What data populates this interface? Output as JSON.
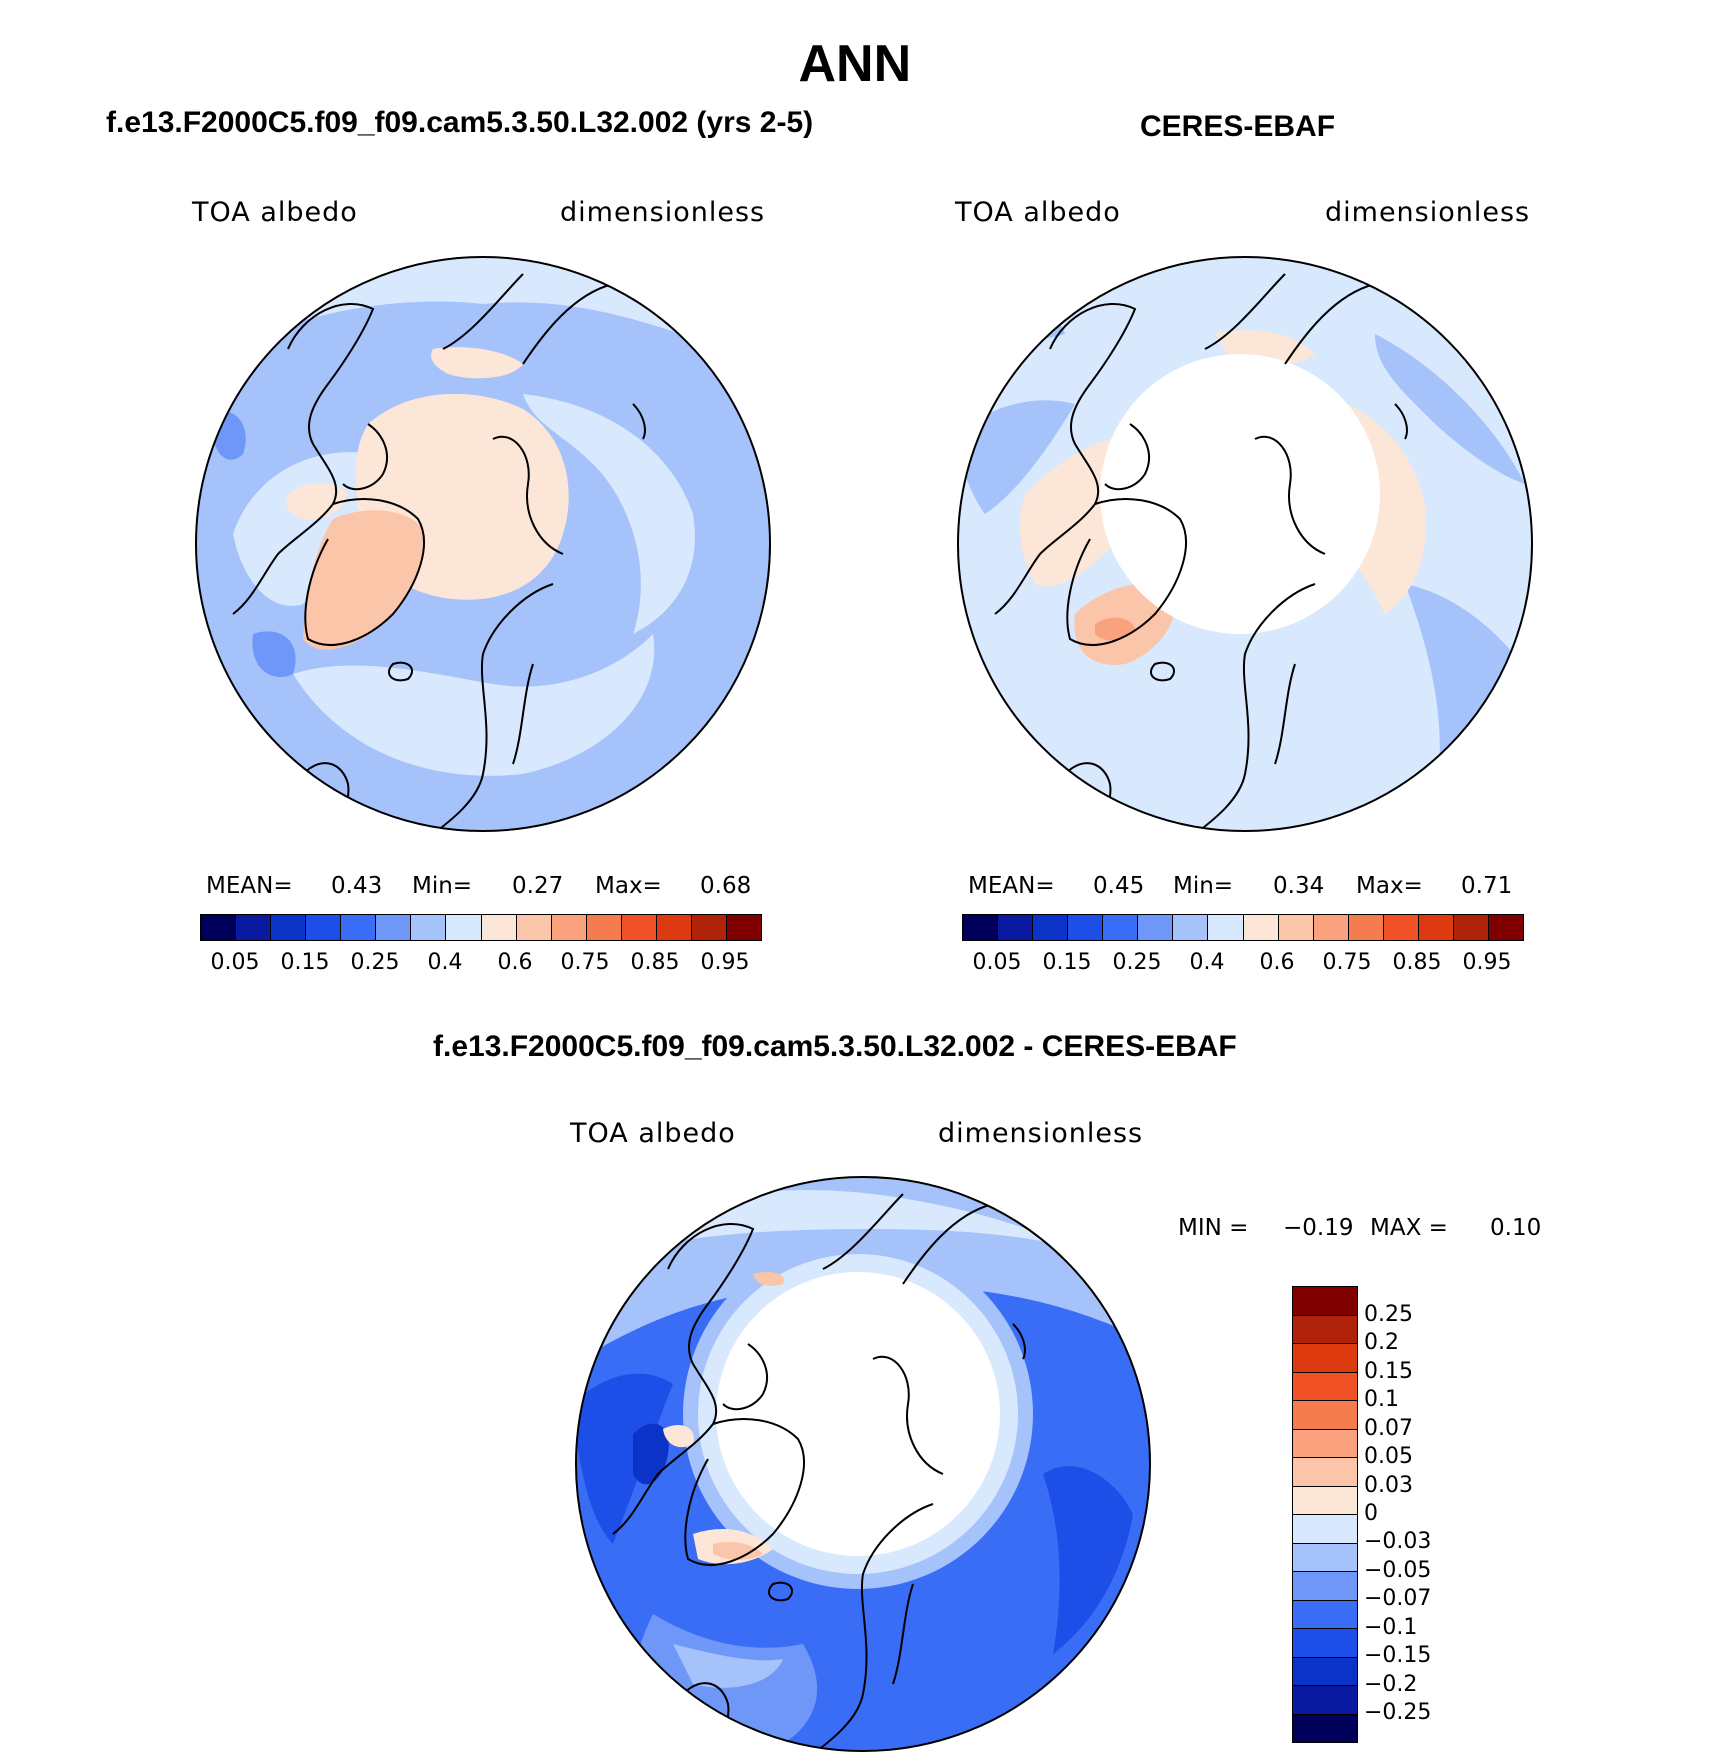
{
  "figure": {
    "title": "ANN"
  },
  "colors": {
    "albedo_scale": [
      "#00005a",
      "#0a1aa0",
      "#0b33c8",
      "#1d4fe8",
      "#3a6df5",
      "#6f97f7",
      "#a5c2fb",
      "#d8e8fd",
      "#fce6d8",
      "#fbc5aa",
      "#f9a27d",
      "#f47c4e",
      "#f05226",
      "#dd3a10",
      "#b0230a",
      "#800000"
    ],
    "diff_scale": [
      "#800000",
      "#b0230a",
      "#dd3a10",
      "#f05226",
      "#f47c4e",
      "#f9a27d",
      "#fbc5aa",
      "#fce6d8",
      "#d8e8fd",
      "#a5c2fb",
      "#6f97f7",
      "#3a6df5",
      "#1d4fe8",
      "#0b33c8",
      "#0a1aa0",
      "#00005a"
    ],
    "coastline": "#000000",
    "frame": "#000000"
  },
  "panels": {
    "model": {
      "title": "f.e13.F2000C5.f09_f09.cam5.3.50.L32.002 (yrs 2-5)",
      "left_label": "TOA albedo",
      "right_label": "dimensionless",
      "stats": {
        "mean_label": "MEAN=",
        "mean": "0.43",
        "min_label": "Min=",
        "min": "0.27",
        "max_label": "Max=",
        "max": "0.68"
      },
      "colorbar_ticks": [
        "0.05",
        "0.15",
        "0.25",
        "0.4",
        "0.6",
        "0.75",
        "0.85",
        "0.95"
      ]
    },
    "obs": {
      "title": "CERES-EBAF",
      "left_label": "TOA albedo",
      "right_label": "dimensionless",
      "stats": {
        "mean_label": "MEAN=",
        "mean": "0.45",
        "min_label": "Min=",
        "min": "0.34",
        "max_label": "Max=",
        "max": "0.71"
      },
      "colorbar_ticks": [
        "0.05",
        "0.15",
        "0.25",
        "0.4",
        "0.6",
        "0.75",
        "0.85",
        "0.95"
      ]
    },
    "diff": {
      "title": "f.e13.F2000C5.f09_f09.cam5.3.50.L32.002 - CERES-EBAF",
      "left_label": "TOA albedo",
      "right_label": "dimensionless",
      "stats": {
        "min_label": "MIN =",
        "min": "−0.19",
        "max_label": "MAX =",
        "max": "0.10"
      },
      "colorbar_ticks": [
        "0.25",
        "0.2",
        "0.15",
        "0.1",
        "0.07",
        "0.05",
        "0.03",
        "0",
        "−0.03",
        "−0.05",
        "−0.07",
        "−0.1",
        "−0.15",
        "−0.2",
        "−0.25"
      ]
    }
  }
}
